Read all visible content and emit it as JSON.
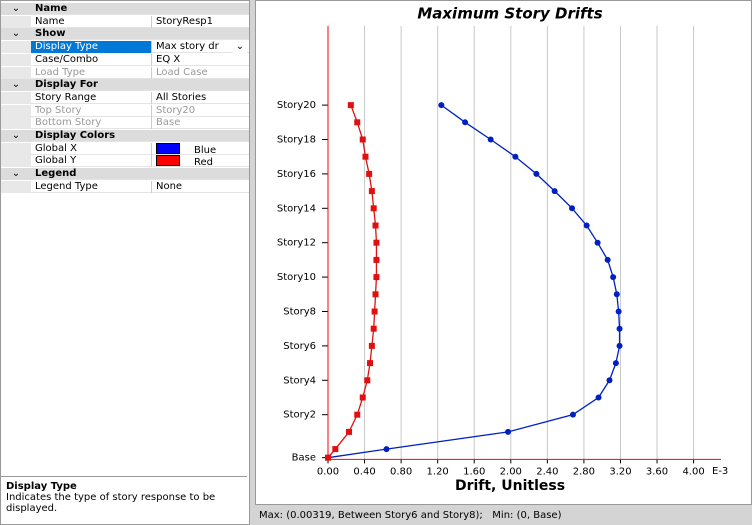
{
  "properties": {
    "groups": [
      {
        "title": "Name",
        "rows": [
          {
            "label": "Name",
            "value": "StoryResp1"
          }
        ]
      },
      {
        "title": "Show",
        "rows": [
          {
            "label": "Display Type",
            "value": "Max story dr",
            "selected": true,
            "dropdown": true
          },
          {
            "label": "Case/Combo",
            "value": "EQ X"
          },
          {
            "label": "Load Type",
            "value": "Load Case",
            "disabled": true
          }
        ]
      },
      {
        "title": "Display For",
        "rows": [
          {
            "label": "Story Range",
            "value": "All Stories"
          },
          {
            "label": "Top Story",
            "value": "Story20",
            "disabled": true
          },
          {
            "label": "Bottom Story",
            "value": "Base",
            "disabled": true
          }
        ]
      },
      {
        "title": "Display Colors",
        "rows": [
          {
            "label": "Global X",
            "value": "Blue",
            "swatch": "#0000ff"
          },
          {
            "label": "Global Y",
            "value": "Red",
            "swatch": "#ff0000"
          }
        ]
      },
      {
        "title": "Legend",
        "rows": [
          {
            "label": "Legend Type",
            "value": "None"
          }
        ]
      }
    ]
  },
  "description": {
    "title": "Display Type",
    "text": "Indicates the type of story response to be displayed."
  },
  "chart_data": {
    "type": "line",
    "title": "Maximum Story Drifts",
    "x_label": "Drift, Unitless",
    "x_unit": "E-3",
    "y": [
      -0.5,
      0,
      1,
      2,
      3,
      4,
      5,
      6,
      7,
      8,
      9,
      10,
      11,
      12,
      13,
      14,
      15,
      16,
      17,
      18,
      19,
      20
    ],
    "series": [
      {
        "color": "#0020c0",
        "marker": "circle",
        "values": [
          0,
          0.64,
          1.97,
          2.68,
          2.96,
          3.08,
          3.15,
          3.19,
          3.19,
          3.18,
          3.16,
          3.12,
          3.06,
          2.95,
          2.83,
          2.67,
          2.48,
          2.28,
          2.05,
          1.78,
          1.5,
          1.24
        ]
      },
      {
        "color": "#e01010",
        "marker": "square",
        "values": [
          0,
          0.08,
          0.23,
          0.32,
          0.38,
          0.43,
          0.46,
          0.48,
          0.5,
          0.51,
          0.52,
          0.53,
          0.53,
          0.53,
          0.52,
          0.5,
          0.48,
          0.45,
          0.41,
          0.38,
          0.32,
          0.25
        ]
      }
    ],
    "xlim": [
      0,
      4.3
    ],
    "xticks": [
      {
        "value": 0,
        "label": "0.00"
      },
      {
        "value": 0.4,
        "label": "0.40"
      },
      {
        "value": 0.8,
        "label": "0.80"
      },
      {
        "value": 1.2,
        "label": "1.20"
      },
      {
        "value": 1.6,
        "label": "1.60"
      },
      {
        "value": 2,
        "label": "2.00"
      },
      {
        "value": 2.4,
        "label": "2.40"
      },
      {
        "value": 2.8,
        "label": "2.80"
      },
      {
        "value": 3.2,
        "label": "3.20"
      },
      {
        "value": 3.6,
        "label": "3.60"
      },
      {
        "value": 4,
        "label": "4.00"
      }
    ],
    "ylim": [
      -0.6,
      24.6
    ],
    "yticks": [
      {
        "value": -0.5,
        "label": "Base"
      },
      {
        "value": 2,
        "label": "Story2"
      },
      {
        "value": 4,
        "label": "Story4"
      },
      {
        "value": 6,
        "label": "Story6"
      },
      {
        "value": 8,
        "label": "Story8"
      },
      {
        "value": 10,
        "label": "Story10"
      },
      {
        "value": 12,
        "label": "Story12"
      },
      {
        "value": 14,
        "label": "Story14"
      },
      {
        "value": 16,
        "label": "Story16"
      },
      {
        "value": 18,
        "label": "Story18"
      },
      {
        "value": 20,
        "label": "Story20"
      }
    ],
    "grid": true,
    "axis_color": "#ff0000"
  },
  "status": "Max: (0.00319, Between Story6 and Story8);   Min: (0, Base)"
}
